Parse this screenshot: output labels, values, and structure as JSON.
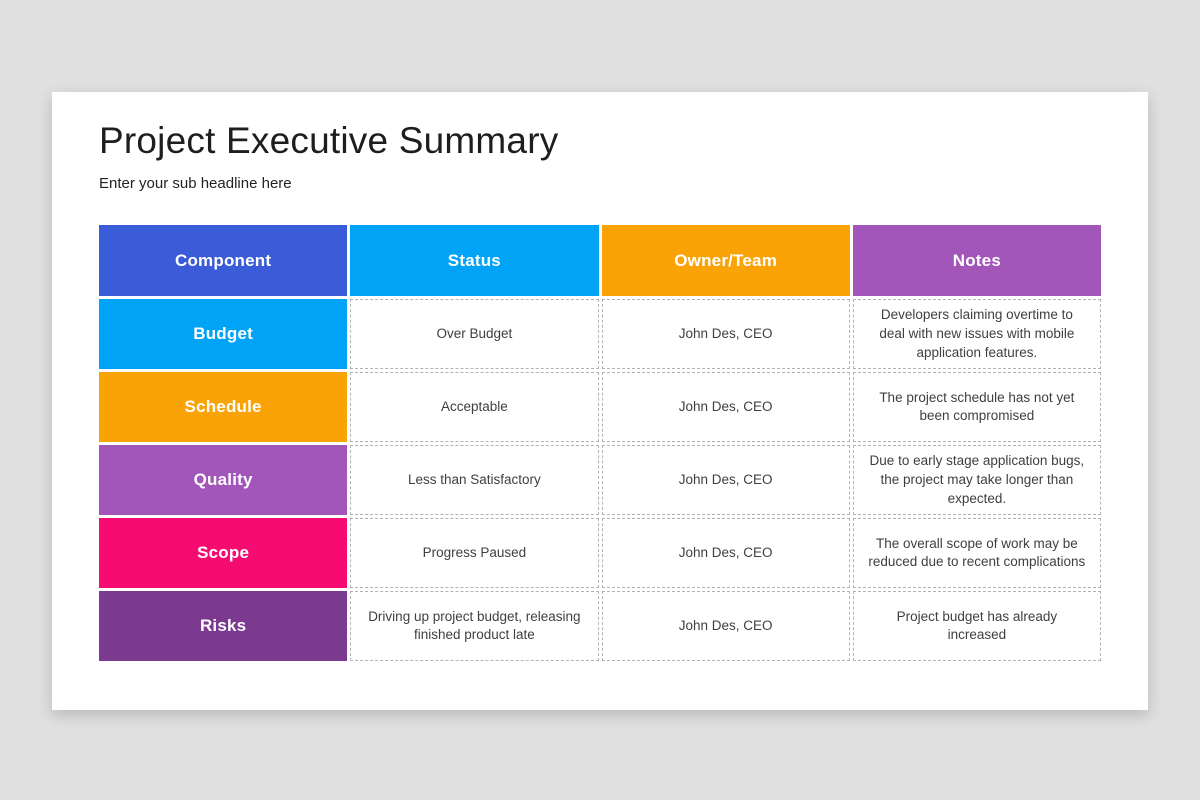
{
  "page": {
    "title": "Project Executive Summary",
    "subtitle": "Enter your sub headline here"
  },
  "colors": {
    "page_background": "#e0e0e0",
    "card_background": "#ffffff",
    "header_component": "#3b5cd9",
    "header_status": "#00a3f5",
    "header_owner": "#faa306",
    "header_notes": "#a356ba",
    "row_budget": "#00a3f5",
    "row_schedule": "#faa306",
    "row_quality": "#a356ba",
    "row_scope": "#f60c71",
    "row_risks": "#7b3990"
  },
  "table": {
    "columns": [
      {
        "label": "Component",
        "color": "#3b5cd9"
      },
      {
        "label": "Status",
        "color": "#00a3f5"
      },
      {
        "label": "Owner/Team",
        "color": "#faa306"
      },
      {
        "label": "Notes",
        "color": "#a356ba"
      }
    ],
    "rows": [
      {
        "component": "Budget",
        "color": "#00a3f5",
        "status": "Over Budget",
        "owner": "John Des, CEO",
        "notes": "Developers claiming overtime to deal with new issues with mobile application features."
      },
      {
        "component": "Schedule",
        "color": "#faa306",
        "status": "Acceptable",
        "owner": "John Des, CEO",
        "notes": "The project schedule has not yet been compromised"
      },
      {
        "component": "Quality",
        "color": "#a356ba",
        "status": "Less than Satisfactory",
        "owner": "John Des, CEO",
        "notes": "Due to early stage application bugs, the project may take longer than expected."
      },
      {
        "component": "Scope",
        "color": "#f60c71",
        "status": "Progress Paused",
        "owner": "John Des, CEO",
        "notes": "The overall scope of work may be reduced due to recent complications"
      },
      {
        "component": "Risks",
        "color": "#7b3990",
        "status": "Driving up project budget, releasing finished product late",
        "owner": "John Des, CEO",
        "notes": "Project budget has already increased"
      }
    ]
  }
}
